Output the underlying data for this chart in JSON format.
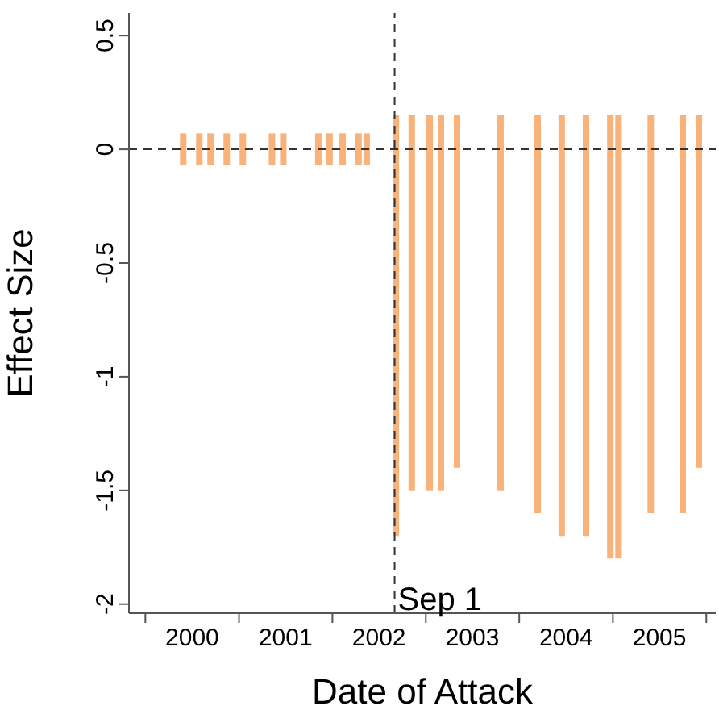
{
  "chart_data": {
    "type": "bar",
    "xlabel": "Date of Attack",
    "ylabel": "Effect Size",
    "x": [
      "2000-05-25",
      "2000-07-27",
      "2000-09-09",
      "2000-11-11",
      "2001-01-13",
      "2001-05-07",
      "2001-06-20",
      "2001-11-04",
      "2001-12-18",
      "2002-02-07",
      "2002-04-10",
      "2002-05-12",
      "2002-09-03",
      "2002-11-04",
      "2003-01-13",
      "2003-02-26",
      "2003-04-30",
      "2003-10-17",
      "2004-03-10",
      "2004-06-12",
      "2004-09-15",
      "2004-12-19",
      "2005-01-20",
      "2005-05-26",
      "2005-09-28",
      "2005-11-30"
    ],
    "base": [
      -0.07,
      -0.07,
      -0.07,
      -0.07,
      -0.07,
      -0.07,
      -0.07,
      -0.07,
      -0.07,
      -0.07,
      -0.07,
      -0.07,
      -1.7,
      -1.5,
      -1.5,
      -1.5,
      -1.4,
      -1.5,
      -1.6,
      -1.7,
      -1.7,
      -1.8,
      -1.8,
      -1.6,
      -1.6,
      -1.4
    ],
    "values": [
      0.14,
      0.14,
      0.14,
      0.14,
      0.14,
      0.14,
      0.14,
      0.14,
      0.14,
      0.14,
      0.14,
      0.14,
      1.85,
      1.65,
      1.65,
      1.65,
      1.55,
      1.65,
      1.75,
      1.85,
      1.85,
      1.95,
      1.95,
      1.75,
      1.75,
      1.55
    ],
    "color": "#f8b27a",
    "xlim": [
      "1999-10-29",
      "2006-02-07"
    ],
    "xticks": [
      {
        "value": "2000-01-01",
        "label": null
      },
      {
        "value": "2000-07-02",
        "label": "2000"
      },
      {
        "value": "2001-01-01",
        "label": null
      },
      {
        "value": "2001-07-02",
        "label": "2001"
      },
      {
        "value": "2002-01-01",
        "label": null
      },
      {
        "value": "2002-07-02",
        "label": "2002"
      },
      {
        "value": "2003-01-01",
        "label": null
      },
      {
        "value": "2003-07-02",
        "label": "2003"
      },
      {
        "value": "2004-01-01",
        "label": null
      },
      {
        "value": "2004-07-02",
        "label": "2004"
      },
      {
        "value": "2005-01-01",
        "label": null
      },
      {
        "value": "2005-07-02",
        "label": "2005"
      },
      {
        "value": "2006-01-01",
        "label": null
      }
    ],
    "ylim": [
      -2.04,
      0.6
    ],
    "yticks": [
      -2,
      -1.5,
      -1,
      -0.5,
      0,
      0.5
    ],
    "ref_lines": [
      {
        "axis": "x",
        "value": "2002-09-01",
        "label": "Sep 1",
        "line_style": "dashed"
      },
      {
        "axis": "y",
        "value": 0,
        "line_style": "dashed"
      }
    ],
    "grid": false,
    "legend": false
  }
}
